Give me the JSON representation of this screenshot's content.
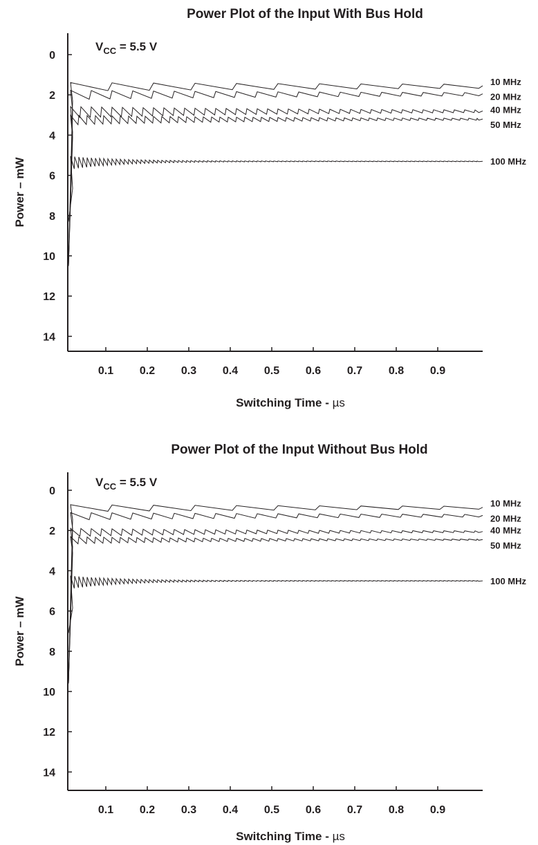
{
  "colors": {
    "ink": "#231f20",
    "background": "#ffffff"
  },
  "chart_data": [
    {
      "type": "line",
      "title": "Power Plot of the Input With Bus Hold",
      "xlabel_main": "Switching Time - ",
      "xlabel_unit": "µs",
      "ylabel": "Power – mW",
      "annotation": {
        "main": "V",
        "sub": "CC",
        "rest": " = 5.5 V"
      },
      "xlim": [
        0,
        1.0
      ],
      "ylim": [
        0,
        14
      ],
      "y_inverted": true,
      "xticks": [
        "0.1",
        "0.2",
        "0.3",
        "0.4",
        "0.5",
        "0.6",
        "0.7",
        "0.8",
        "0.9"
      ],
      "yticks": [
        "0",
        "2",
        "4",
        "6",
        "8",
        "10",
        "12",
        "14"
      ],
      "grid": false,
      "series": [
        {
          "name": "10 MHz",
          "steady": 1.55,
          "initial": 10.5,
          "settle": 0.006,
          "amp": 0.25,
          "ripple": 0.1,
          "decay": 1.2
        },
        {
          "name": "20 MHz",
          "steady": 1.95,
          "initial": 10.5,
          "settle": 0.007,
          "amp": 0.28,
          "ripple": 0.05,
          "decay": 0.8
        },
        {
          "name": "40 MHz",
          "steady": 2.8,
          "initial": 10.5,
          "settle": 0.008,
          "amp": 0.35,
          "ripple": 0.025,
          "decay": 0.6
        },
        {
          "name": "50 MHz",
          "steady": 3.2,
          "initial": 10.5,
          "settle": 0.008,
          "amp": 0.3,
          "ripple": 0.02,
          "decay": 0.5
        },
        {
          "name": "100 MHz",
          "steady": 5.3,
          "initial": 8.3,
          "settle": 0.01,
          "amp": 0.45,
          "ripple": 0.01,
          "decay": 0.12
        }
      ]
    },
    {
      "type": "line",
      "title": "Power Plot of the Input Without Bus Hold",
      "xlabel_main": "Switching Time - ",
      "xlabel_unit": "µs",
      "ylabel": "Power – mW",
      "annotation": {
        "main": "V",
        "sub": "CC",
        "rest": " = 5.5 V"
      },
      "xlim": [
        0,
        1.0
      ],
      "ylim": [
        0,
        14
      ],
      "y_inverted": true,
      "xticks": [
        "0.1",
        "0.2",
        "0.3",
        "0.4",
        "0.5",
        "0.6",
        "0.7",
        "0.8",
        "0.9"
      ],
      "yticks": [
        "0",
        "2",
        "4",
        "6",
        "8",
        "10",
        "12",
        "14"
      ],
      "grid": false,
      "series": [
        {
          "name": "10 MHz",
          "steady": 0.85,
          "initial": 9.6,
          "settle": 0.006,
          "amp": 0.2,
          "ripple": 0.1,
          "decay": 1.0
        },
        {
          "name": "20 MHz",
          "steady": 1.25,
          "initial": 9.6,
          "settle": 0.007,
          "amp": 0.22,
          "ripple": 0.05,
          "decay": 0.8
        },
        {
          "name": "40 MHz",
          "steady": 2.05,
          "initial": 9.6,
          "settle": 0.008,
          "amp": 0.25,
          "ripple": 0.025,
          "decay": 0.5
        },
        {
          "name": "50 MHz",
          "steady": 2.45,
          "initial": 9.6,
          "settle": 0.008,
          "amp": 0.22,
          "ripple": 0.02,
          "decay": 0.4
        },
        {
          "name": "100 MHz",
          "steady": 4.5,
          "initial": 7.1,
          "settle": 0.01,
          "amp": 0.45,
          "ripple": 0.01,
          "decay": 0.12
        }
      ]
    }
  ]
}
